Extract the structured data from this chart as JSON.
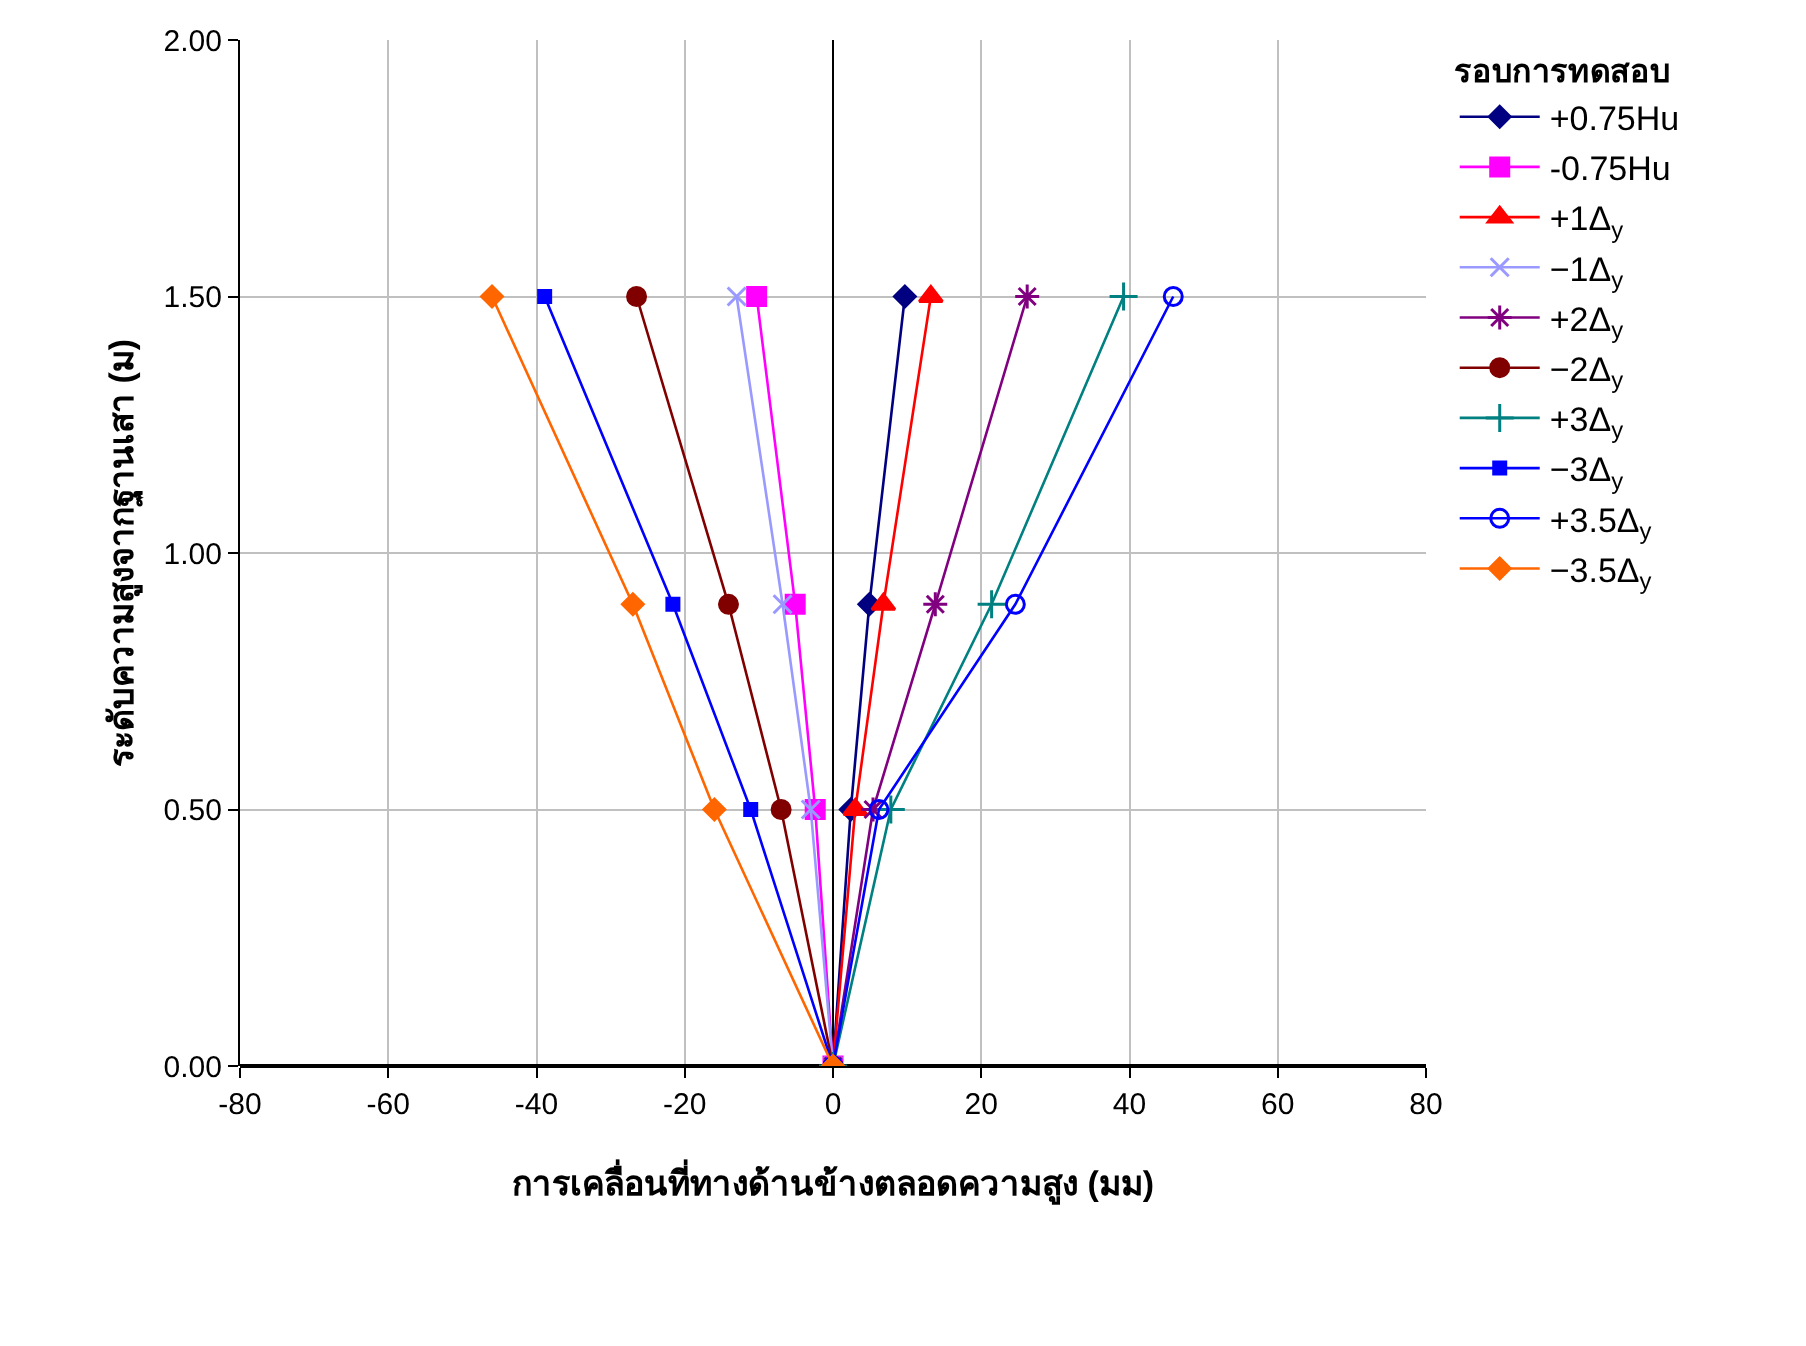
{
  "chart_data": {
    "type": "line",
    "xlabel": "การเคลื่อนที่ทางด้านข้างตลอดความสูง (มม)",
    "ylabel": "ระดับความสูงจากฐานเสา (ม)",
    "legend_title": "รอบการทดสอบ",
    "xlim": [
      -80,
      80
    ],
    "xticks": [
      -80,
      -60,
      -40,
      -20,
      0,
      20,
      40,
      60,
      80
    ],
    "ylim": [
      0,
      2
    ],
    "yticks": [
      {
        "value": 0,
        "label": "0.00"
      },
      {
        "value": 0.5,
        "label": "0.50"
      },
      {
        "value": 1,
        "label": "1.00"
      },
      {
        "value": 1.5,
        "label": "1.50"
      },
      {
        "value": 2,
        "label": "2.00"
      }
    ],
    "grid": true,
    "legend": "right",
    "series": [
      {
        "name": "+0.75Hu",
        "color": "#000080",
        "marker": "diamond",
        "x": [
          0,
          2.4,
          4.9,
          9.7
        ],
        "values": [
          0,
          0.5,
          0.9,
          1.5
        ]
      },
      {
        "name": "-0.75Hu",
        "color": "#ff00ff",
        "marker": "square",
        "x": [
          0,
          -2.4,
          -5.1,
          -10.3
        ],
        "values": [
          0,
          0.5,
          0.9,
          1.5
        ]
      },
      {
        "name": "+1Δ$_{y}$",
        "color": "#ff0000",
        "marker": "triangle",
        "x": [
          0,
          3.0,
          6.8,
          13.2
        ],
        "values": [
          0,
          0.5,
          0.9,
          1.5
        ]
      },
      {
        "name": "−1Δ$_{y}$",
        "color": "#9999ff",
        "marker": "x",
        "x": [
          0,
          -3.0,
          -6.8,
          -13.0
        ],
        "values": [
          0,
          0.5,
          0.9,
          1.5
        ]
      },
      {
        "name": "+2Δ$_{y}$",
        "color": "#800080",
        "marker": "cross",
        "x": [
          0,
          5.4,
          13.8,
          26.2
        ],
        "values": [
          0,
          0.5,
          0.9,
          1.5
        ]
      },
      {
        "name": "−2Δ$_{y}$",
        "color": "#800000",
        "marker": "circle",
        "x": [
          0,
          -7.0,
          -14.1,
          -26.5
        ],
        "values": [
          0,
          0.5,
          0.9,
          1.5
        ]
      },
      {
        "name": "+3Δ$_{y}$",
        "color": "#008080",
        "marker": "plus",
        "x": [
          0,
          7.8,
          21.4,
          39.2
        ],
        "values": [
          0,
          0.5,
          0.9,
          1.5
        ]
      },
      {
        "name": "−3Δ$_{y}$",
        "color": "#0000ff",
        "marker": "square-small",
        "x": [
          0,
          -11.1,
          -21.6,
          -38.9
        ],
        "values": [
          0,
          0.5,
          0.9,
          1.5
        ]
      },
      {
        "name": "+3.5Δ$_{y}$",
        "color": "#0000ff",
        "marker": "circle-open",
        "x": [
          0,
          6.2,
          24.6,
          45.9
        ],
        "values": [
          0,
          0.5,
          0.9,
          1.5
        ]
      },
      {
        "name": "−3.5Δ$_{y}$",
        "color": "#ff6600",
        "marker": "diamond",
        "x": [
          0,
          -16.0,
          -27.0,
          -46.0
        ],
        "values": [
          0,
          0.5,
          0.9,
          1.5
        ]
      }
    ]
  }
}
